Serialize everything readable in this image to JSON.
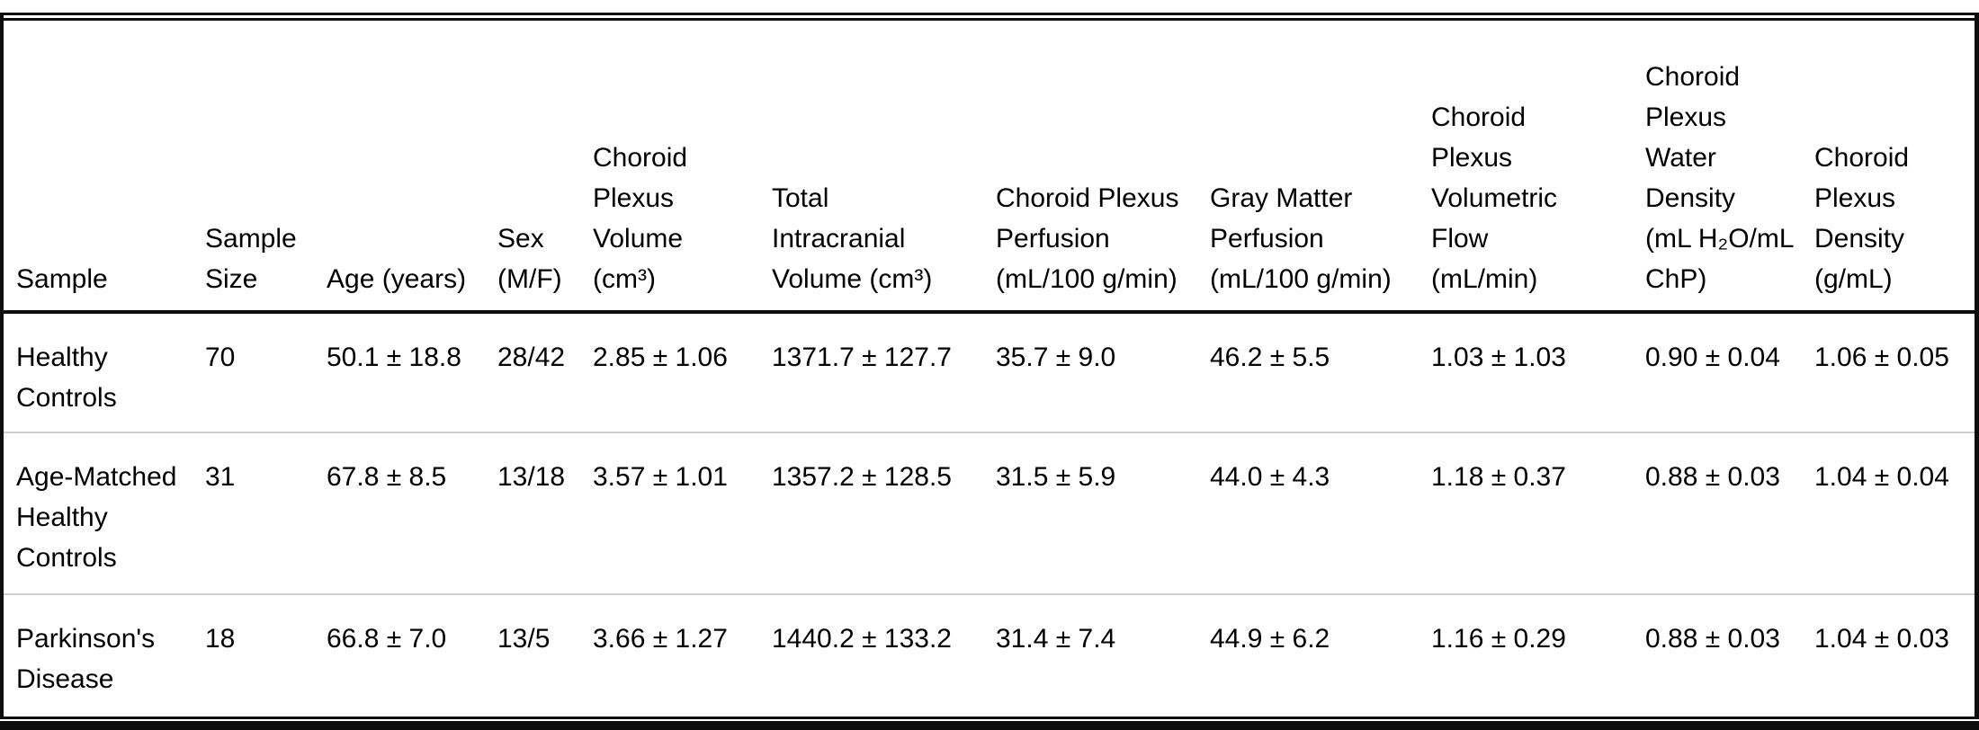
{
  "colors": {
    "frame": "#0d0d0d",
    "row-divider": "#cfcfcf",
    "text": "#000000",
    "bg": "#ffffff"
  },
  "table": {
    "columns": [
      {
        "id": "sample",
        "label": [
          "Sample"
        ]
      },
      {
        "id": "sample-size",
        "label": [
          "Sample",
          "Size"
        ]
      },
      {
        "id": "age",
        "label": [
          "Age (years)"
        ]
      },
      {
        "id": "sex",
        "label": [
          "Sex",
          "(M/F)"
        ]
      },
      {
        "id": "choroid-plexus-volume",
        "label": [
          "Choroid",
          "Plexus",
          "Volume",
          "(cm³)"
        ]
      },
      {
        "id": "total-intracranial-volume",
        "label": [
          "Total",
          "Intracranial",
          "Volume (cm³)"
        ]
      },
      {
        "id": "choroid-plexus-perfusion",
        "label": [
          "Choroid Plexus",
          "Perfusion",
          "(mL/100 g/min)"
        ]
      },
      {
        "id": "gray-matter-perfusion",
        "label": [
          "Gray Matter",
          "Perfusion",
          "(mL/100 g/min)"
        ]
      },
      {
        "id": "choroid-plexus-volumetric-flow",
        "label": [
          "Choroid",
          "Plexus",
          "Volumetric",
          "Flow",
          "(mL/min)"
        ]
      },
      {
        "id": "choroid-plexus-water-density",
        "label": [
          "Choroid",
          "Plexus",
          "Water",
          "Density",
          "(mL H₂O/mL",
          "ChP)"
        ]
      },
      {
        "id": "choroid-plexus-density",
        "label": [
          "Choroid",
          "Plexus",
          "Density",
          "(g/mL)"
        ]
      }
    ],
    "rows": [
      {
        "sample": [
          "Healthy",
          "Controls"
        ],
        "values": [
          "70",
          "50.1 ± 18.8",
          "28/42",
          "2.85 ± 1.06",
          "1371.7 ± 127.7",
          "35.7 ± 9.0",
          "46.2 ± 5.5",
          "1.03 ± 1.03",
          "0.90 ± 0.04",
          "1.06 ± 0.05"
        ]
      },
      {
        "sample": [
          "Age-Matched",
          "Healthy",
          "Controls"
        ],
        "values": [
          "31",
          "67.8 ± 8.5",
          "13/18",
          "3.57 ± 1.01",
          "1357.2 ± 128.5",
          "31.5 ± 5.9",
          "44.0 ± 4.3",
          "1.18 ± 0.37",
          "0.88 ± 0.03",
          "1.04 ± 0.04"
        ]
      },
      {
        "sample": [
          "Parkinson's",
          "Disease"
        ],
        "values": [
          "18",
          "66.8 ± 7.0",
          "13/5",
          "3.66 ± 1.27",
          "1440.2 ± 133.2",
          "31.4 ± 7.4",
          "44.9 ± 6.2",
          "1.16 ± 0.29",
          "0.88 ± 0.03",
          "1.04 ± 0.03"
        ]
      }
    ]
  }
}
